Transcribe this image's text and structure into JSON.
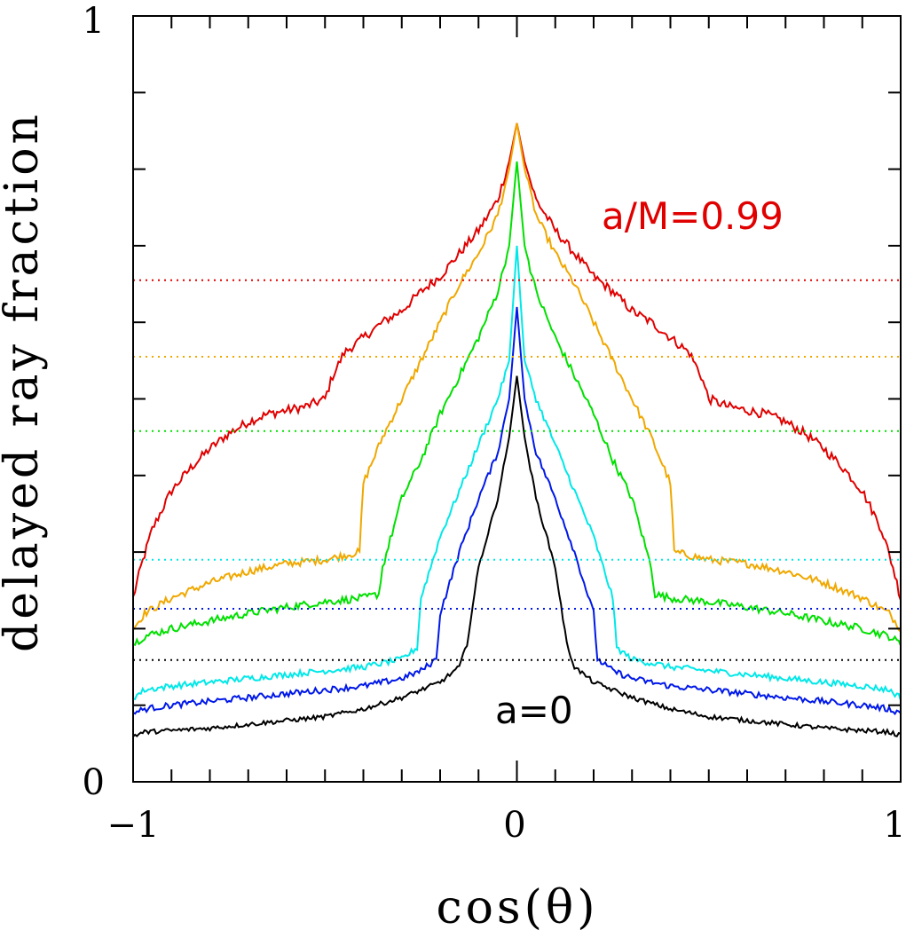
{
  "chart_data": {
    "type": "line",
    "title": "",
    "xlabel": "cos(θ)",
    "ylabel": "delayed ray fraction",
    "xlim": [
      -1,
      1
    ],
    "ylim": [
      0,
      1
    ],
    "grid": false,
    "x_major_ticks": [
      -1,
      0,
      1
    ],
    "x_tick_labels": [
      "−1",
      "0",
      "1"
    ],
    "y_major_ticks": [
      0,
      1
    ],
    "y_tick_labels": [
      "0",
      "1"
    ],
    "x_minor_step": 0.1,
    "y_minor_step": 0.1,
    "annotations": [
      {
        "text": "a/M=0.99",
        "x": 0.5,
        "y": 0.73,
        "color": "#e00000"
      },
      {
        "text": "a=0",
        "x": 0.0,
        "y": 0.09,
        "color": "#000000"
      }
    ],
    "series": [
      {
        "name": "a/M=0.99",
        "color": "#e00000",
        "noise": 0.006,
        "x": [
          -1,
          -0.98,
          -0.95,
          -0.9,
          -0.85,
          -0.8,
          -0.75,
          -0.7,
          -0.65,
          -0.6,
          -0.55,
          -0.5,
          -0.48,
          -0.45,
          -0.4,
          -0.35,
          -0.3,
          -0.25,
          -0.2,
          -0.15,
          -0.1,
          -0.05,
          -0.02,
          0,
          0.02,
          0.05,
          0.1,
          0.15,
          0.2,
          0.25,
          0.3,
          0.35,
          0.4,
          0.45,
          0.48,
          0.5,
          0.55,
          0.6,
          0.65,
          0.7,
          0.75,
          0.8,
          0.85,
          0.9,
          0.95,
          0.98,
          1
        ],
        "y": [
          0.24,
          0.28,
          0.33,
          0.38,
          0.41,
          0.435,
          0.455,
          0.47,
          0.48,
          0.485,
          0.49,
          0.5,
          0.53,
          0.56,
          0.58,
          0.6,
          0.615,
          0.64,
          0.66,
          0.69,
          0.72,
          0.76,
          0.81,
          0.86,
          0.81,
          0.76,
          0.72,
          0.69,
          0.66,
          0.64,
          0.615,
          0.6,
          0.58,
          0.56,
          0.53,
          0.5,
          0.49,
          0.485,
          0.48,
          0.47,
          0.455,
          0.435,
          0.41,
          0.38,
          0.33,
          0.28,
          0.24
        ],
        "mean_level": 0.655
      },
      {
        "name": "series-orange",
        "color": "#f0a800",
        "noise": 0.005,
        "x": [
          -1,
          -0.97,
          -0.9,
          -0.8,
          -0.7,
          -0.6,
          -0.5,
          -0.41,
          -0.4,
          -0.35,
          -0.3,
          -0.25,
          -0.2,
          -0.15,
          -0.1,
          -0.05,
          -0.02,
          0,
          0.02,
          0.05,
          0.1,
          0.15,
          0.2,
          0.25,
          0.3,
          0.35,
          0.4,
          0.41,
          0.5,
          0.6,
          0.7,
          0.8,
          0.9,
          0.97,
          1
        ],
        "y": [
          0.2,
          0.22,
          0.24,
          0.26,
          0.275,
          0.285,
          0.29,
          0.3,
          0.39,
          0.45,
          0.5,
          0.55,
          0.6,
          0.65,
          0.69,
          0.74,
          0.8,
          0.86,
          0.8,
          0.74,
          0.69,
          0.65,
          0.6,
          0.55,
          0.5,
          0.45,
          0.39,
          0.3,
          0.29,
          0.285,
          0.275,
          0.26,
          0.24,
          0.22,
          0.2
        ],
        "mean_level": 0.555
      },
      {
        "name": "series-green",
        "color": "#00e000",
        "noise": 0.005,
        "x": [
          -1,
          -0.97,
          -0.9,
          -0.8,
          -0.7,
          -0.6,
          -0.5,
          -0.4,
          -0.36,
          -0.35,
          -0.3,
          -0.25,
          -0.2,
          -0.15,
          -0.1,
          -0.05,
          -0.02,
          0,
          0.02,
          0.05,
          0.1,
          0.15,
          0.2,
          0.25,
          0.3,
          0.35,
          0.36,
          0.4,
          0.5,
          0.6,
          0.7,
          0.8,
          0.9,
          0.97,
          1
        ],
        "y": [
          0.18,
          0.19,
          0.2,
          0.21,
          0.22,
          0.228,
          0.235,
          0.24,
          0.245,
          0.28,
          0.37,
          0.42,
          0.48,
          0.53,
          0.58,
          0.64,
          0.7,
          0.81,
          0.7,
          0.64,
          0.58,
          0.53,
          0.48,
          0.42,
          0.37,
          0.28,
          0.245,
          0.24,
          0.235,
          0.228,
          0.22,
          0.21,
          0.2,
          0.19,
          0.18
        ],
        "mean_level": 0.458
      },
      {
        "name": "series-cyan",
        "color": "#00e8e8",
        "noise": 0.004,
        "x": [
          -1,
          -0.97,
          -0.9,
          -0.8,
          -0.7,
          -0.6,
          -0.5,
          -0.4,
          -0.3,
          -0.26,
          -0.25,
          -0.2,
          -0.15,
          -0.1,
          -0.05,
          -0.02,
          0,
          0.02,
          0.05,
          0.1,
          0.15,
          0.2,
          0.25,
          0.26,
          0.3,
          0.4,
          0.5,
          0.6,
          0.7,
          0.8,
          0.9,
          0.97,
          1
        ],
        "y": [
          0.11,
          0.12,
          0.125,
          0.13,
          0.135,
          0.14,
          0.145,
          0.15,
          0.16,
          0.175,
          0.24,
          0.32,
          0.38,
          0.44,
          0.5,
          0.55,
          0.7,
          0.55,
          0.5,
          0.44,
          0.38,
          0.32,
          0.24,
          0.175,
          0.16,
          0.15,
          0.145,
          0.14,
          0.135,
          0.13,
          0.125,
          0.12,
          0.11
        ],
        "mean_level": 0.29
      },
      {
        "name": "series-blue",
        "color": "#0018e8",
        "noise": 0.004,
        "x": [
          -1,
          -0.97,
          -0.9,
          -0.8,
          -0.7,
          -0.6,
          -0.5,
          -0.4,
          -0.3,
          -0.25,
          -0.21,
          -0.2,
          -0.15,
          -0.1,
          -0.05,
          -0.02,
          0,
          0.02,
          0.05,
          0.1,
          0.15,
          0.2,
          0.21,
          0.25,
          0.3,
          0.4,
          0.5,
          0.6,
          0.7,
          0.8,
          0.9,
          0.97,
          1
        ],
        "y": [
          0.09,
          0.095,
          0.1,
          0.105,
          0.11,
          0.115,
          0.12,
          0.125,
          0.135,
          0.145,
          0.16,
          0.22,
          0.3,
          0.37,
          0.43,
          0.5,
          0.62,
          0.5,
          0.43,
          0.37,
          0.3,
          0.22,
          0.16,
          0.145,
          0.135,
          0.125,
          0.12,
          0.115,
          0.11,
          0.105,
          0.1,
          0.095,
          0.09
        ],
        "mean_level": 0.226
      },
      {
        "name": "a=0",
        "color": "#000000",
        "noise": 0.003,
        "x": [
          -1,
          -0.97,
          -0.9,
          -0.8,
          -0.7,
          -0.6,
          -0.5,
          -0.4,
          -0.3,
          -0.2,
          -0.15,
          -0.13,
          -0.1,
          -0.05,
          -0.02,
          0,
          0.02,
          0.05,
          0.1,
          0.13,
          0.15,
          0.2,
          0.3,
          0.4,
          0.5,
          0.6,
          0.7,
          0.8,
          0.9,
          0.97,
          1
        ],
        "y": [
          0.06,
          0.065,
          0.067,
          0.07,
          0.075,
          0.08,
          0.085,
          0.095,
          0.11,
          0.13,
          0.15,
          0.18,
          0.28,
          0.37,
          0.45,
          0.53,
          0.45,
          0.37,
          0.28,
          0.18,
          0.15,
          0.13,
          0.11,
          0.095,
          0.085,
          0.08,
          0.075,
          0.07,
          0.067,
          0.065,
          0.06
        ],
        "mean_level": 0.159
      }
    ]
  }
}
